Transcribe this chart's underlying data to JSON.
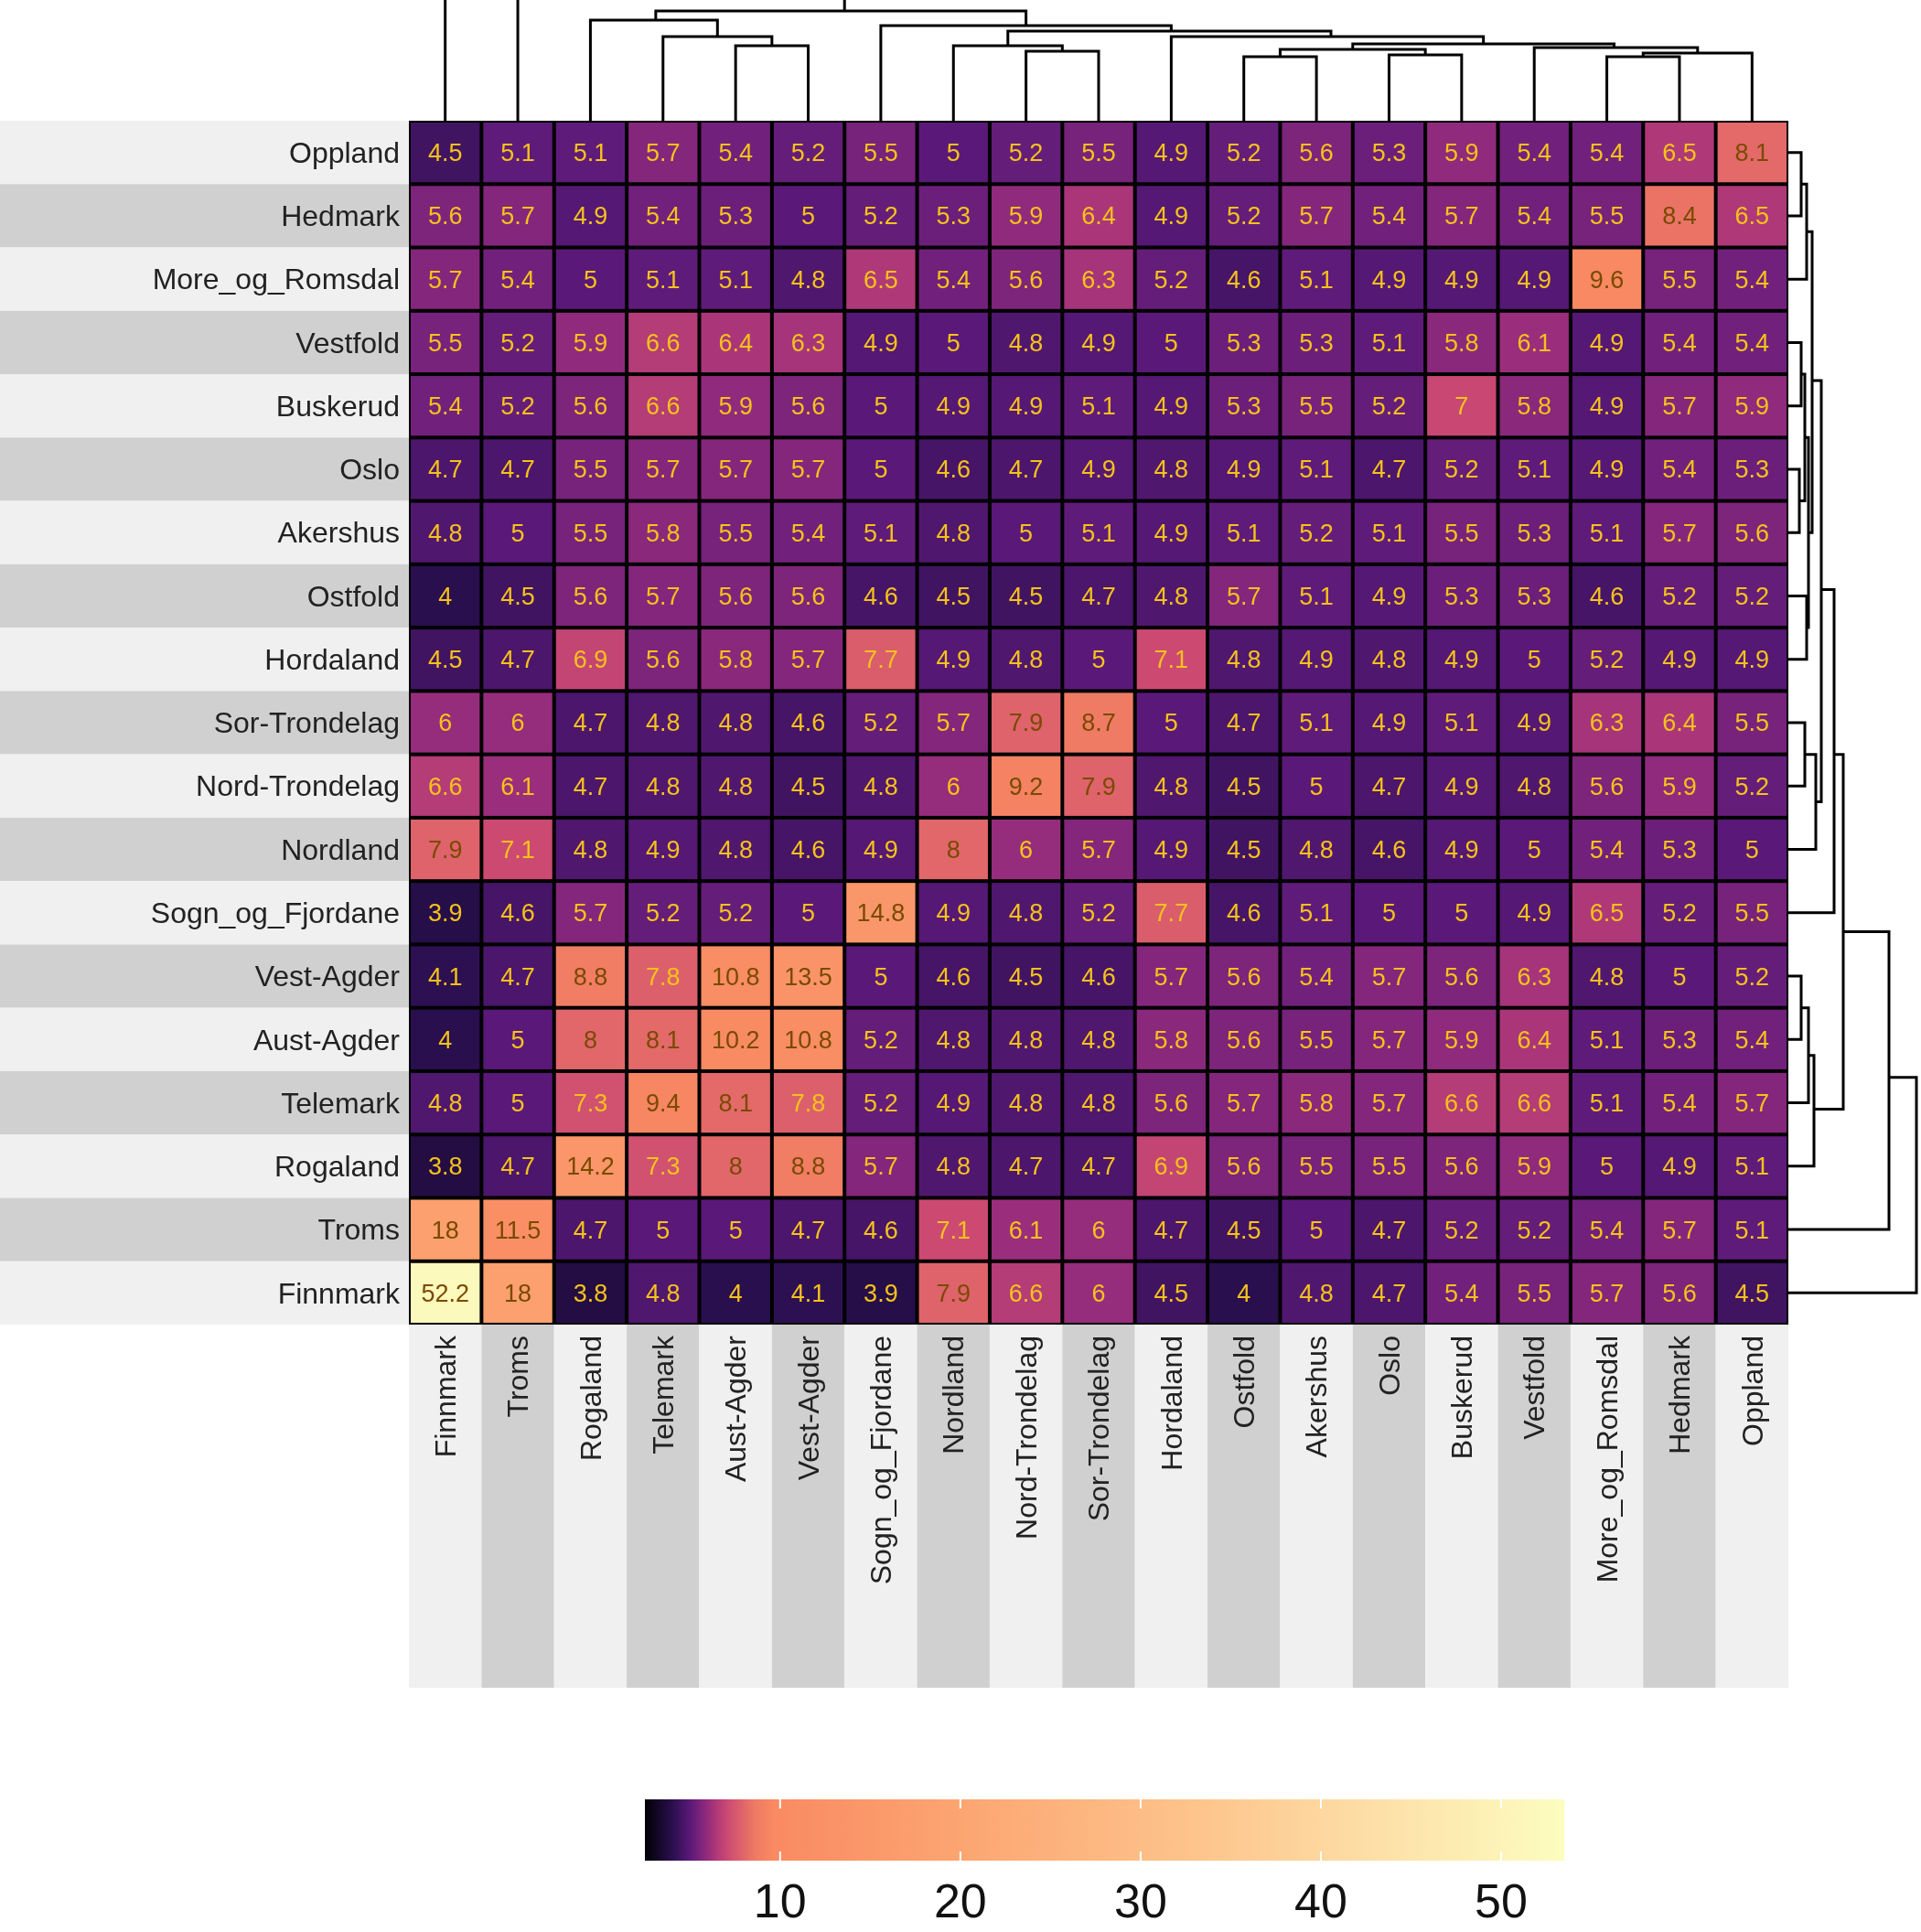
{
  "chart_data": {
    "type": "heatmap",
    "categories": [
      "Finnmark",
      "Troms",
      "Rogaland",
      "Telemark",
      "Aust-Agder",
      "Vest-Agder",
      "Sogn_og_Fjordane",
      "Nordland",
      "Nord-Trondelag",
      "Sor-Trondelag",
      "Hordaland",
      "Ostfold",
      "Akershus",
      "Oslo",
      "Buskerud",
      "Vestfold",
      "More_og_Romsdal",
      "Hedmark",
      "Oppland"
    ],
    "y_categories": [
      "Oppland",
      "Hedmark",
      "More_og_Romsdal",
      "Vestfold",
      "Buskerud",
      "Oslo",
      "Akershus",
      "Ostfold",
      "Hordaland",
      "Sor-Trondelag",
      "Nord-Trondelag",
      "Nordland",
      "Sogn_og_Fjordane",
      "Vest-Agder",
      "Aust-Agder",
      "Telemark",
      "Rogaland",
      "Troms",
      "Finnmark"
    ],
    "cells": [
      [
        4.5,
        5.1,
        5.1,
        5.7,
        5.4,
        5.2,
        5.5,
        5,
        5.2,
        5.5,
        4.9,
        5.2,
        5.6,
        5.3,
        5.9,
        5.4,
        5.4,
        6.5,
        8.1
      ],
      [
        5.6,
        5.7,
        4.9,
        5.4,
        5.3,
        5,
        5.2,
        5.3,
        5.9,
        6.4,
        4.9,
        5.2,
        5.7,
        5.4,
        5.7,
        5.4,
        5.5,
        8.4,
        6.5
      ],
      [
        5.7,
        5.4,
        5,
        5.1,
        5.1,
        4.8,
        6.5,
        5.4,
        5.6,
        6.3,
        5.2,
        4.6,
        5.1,
        4.9,
        4.9,
        4.9,
        9.6,
        5.5,
        5.4
      ],
      [
        5.5,
        5.2,
        5.9,
        6.6,
        6.4,
        6.3,
        4.9,
        5,
        4.8,
        4.9,
        5,
        5.3,
        5.3,
        5.1,
        5.8,
        6.1,
        4.9,
        5.4,
        5.4
      ],
      [
        5.4,
        5.2,
        5.6,
        6.6,
        5.9,
        5.6,
        5,
        4.9,
        4.9,
        5.1,
        4.9,
        5.3,
        5.5,
        5.2,
        7,
        5.8,
        4.9,
        5.7,
        5.9
      ],
      [
        4.7,
        4.7,
        5.5,
        5.7,
        5.7,
        5.7,
        5,
        4.6,
        4.7,
        4.9,
        4.8,
        4.9,
        5.1,
        4.7,
        5.2,
        5.1,
        4.9,
        5.4,
        5.3
      ],
      [
        4.8,
        5,
        5.5,
        5.8,
        5.5,
        5.4,
        5.1,
        4.8,
        5,
        5.1,
        4.9,
        5.1,
        5.2,
        5.1,
        5.5,
        5.3,
        5.1,
        5.7,
        5.6
      ],
      [
        4,
        4.5,
        5.6,
        5.7,
        5.6,
        5.6,
        4.6,
        4.5,
        4.5,
        4.7,
        4.8,
        5.7,
        5.1,
        4.9,
        5.3,
        5.3,
        4.6,
        5.2,
        5.2
      ],
      [
        4.5,
        4.7,
        6.9,
        5.6,
        5.8,
        5.7,
        7.7,
        4.9,
        4.8,
        5,
        7.1,
        4.8,
        4.9,
        4.8,
        4.9,
        5,
        5.2,
        4.9,
        4.9
      ],
      [
        6,
        6,
        4.7,
        4.8,
        4.8,
        4.6,
        5.2,
        5.7,
        7.9,
        8.7,
        5,
        4.7,
        5.1,
        4.9,
        5.1,
        4.9,
        6.3,
        6.4,
        5.5
      ],
      [
        6.6,
        6.1,
        4.7,
        4.8,
        4.8,
        4.5,
        4.8,
        6,
        9.2,
        7.9,
        4.8,
        4.5,
        5,
        4.7,
        4.9,
        4.8,
        5.6,
        5.9,
        5.2
      ],
      [
        7.9,
        7.1,
        4.8,
        4.9,
        4.8,
        4.6,
        4.9,
        8,
        6,
        5.7,
        4.9,
        4.5,
        4.8,
        4.6,
        4.9,
        5,
        5.4,
        5.3,
        5
      ],
      [
        3.9,
        4.6,
        5.7,
        5.2,
        5.2,
        5,
        14.8,
        4.9,
        4.8,
        5.2,
        7.7,
        4.6,
        5.1,
        5,
        5,
        4.9,
        6.5,
        5.2,
        5.5
      ],
      [
        4.1,
        4.7,
        8.8,
        7.8,
        10.8,
        13.5,
        5,
        4.6,
        4.5,
        4.6,
        5.7,
        5.6,
        5.4,
        5.7,
        5.6,
        6.3,
        4.8,
        5,
        5.2
      ],
      [
        4,
        5,
        8,
        8.1,
        10.2,
        10.8,
        5.2,
        4.8,
        4.8,
        4.8,
        5.8,
        5.6,
        5.5,
        5.7,
        5.9,
        6.4,
        5.1,
        5.3,
        5.4
      ],
      [
        4.8,
        5,
        7.3,
        9.4,
        8.1,
        7.8,
        5.2,
        4.9,
        4.8,
        4.8,
        5.6,
        5.7,
        5.8,
        5.7,
        6.6,
        6.6,
        5.1,
        5.4,
        5.7
      ],
      [
        3.8,
        4.7,
        14.2,
        7.3,
        8,
        8.8,
        5.7,
        4.8,
        4.7,
        4.7,
        6.9,
        5.6,
        5.5,
        5.5,
        5.6,
        5.9,
        5,
        4.9,
        5.1
      ],
      [
        18,
        11.5,
        4.7,
        5,
        5,
        4.7,
        4.6,
        7.1,
        6.1,
        6,
        4.7,
        4.5,
        5,
        4.7,
        5.2,
        5.2,
        5.4,
        5.7,
        5.1
      ],
      [
        52.2,
        18,
        3.8,
        4.8,
        4,
        4.1,
        3.9,
        7.9,
        6.6,
        6,
        4.5,
        4,
        4.8,
        4.7,
        5.4,
        5.5,
        5.7,
        5.6,
        4.5
      ]
    ],
    "data_labels": true,
    "clim": [
      2.5,
      53.5
    ],
    "cticks": [
      10,
      20,
      30,
      40,
      50
    ]
  }
}
